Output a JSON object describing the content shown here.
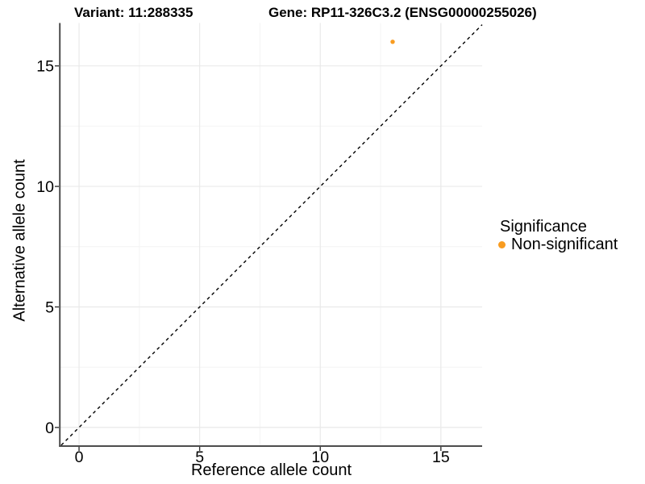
{
  "titles": {
    "variant": "Variant: 11:288335",
    "gene": "Gene: RP11-326C3.2 (ENSG00000255026)"
  },
  "chart_data": {
    "type": "scatter",
    "title_left": "Variant: 11:288335",
    "title_right": "Gene: RP11-326C3.2 (ENSG00000255026)",
    "xlabel": "Reference allele count",
    "ylabel": "Alternative allele count",
    "xlim": [
      -0.77,
      16.71
    ],
    "ylim": [
      -0.74,
      16.78
    ],
    "x_ticks": [
      0,
      5,
      10,
      15
    ],
    "y_ticks": [
      0,
      5,
      10,
      15
    ],
    "x_minor_ticks": [
      2.5,
      7.5,
      12.5
    ],
    "y_minor_ticks": [
      2.5,
      7.5,
      12.5
    ],
    "grid": true,
    "legend_position": "right",
    "series": [
      {
        "name": "Non-significant",
        "color": "#F89C20",
        "points": [
          {
            "x": 13,
            "y": 16
          }
        ]
      }
    ],
    "reference_line": {
      "slope": 1,
      "intercept": 0,
      "style": "dashed",
      "color": "#000000"
    }
  },
  "legend": {
    "title": "Significance",
    "items": [
      {
        "label": "Non-significant",
        "color": "#F89C20"
      }
    ]
  },
  "colors": {
    "background": "#FFFFFF",
    "point": "#F89C20",
    "axis_line": "#4D4D4D",
    "tick_mark": "#333333",
    "grid_major": "#E9E9E9",
    "grid_minor": "#F4F4F4",
    "text": "#000000",
    "reference_line": "#000000"
  }
}
